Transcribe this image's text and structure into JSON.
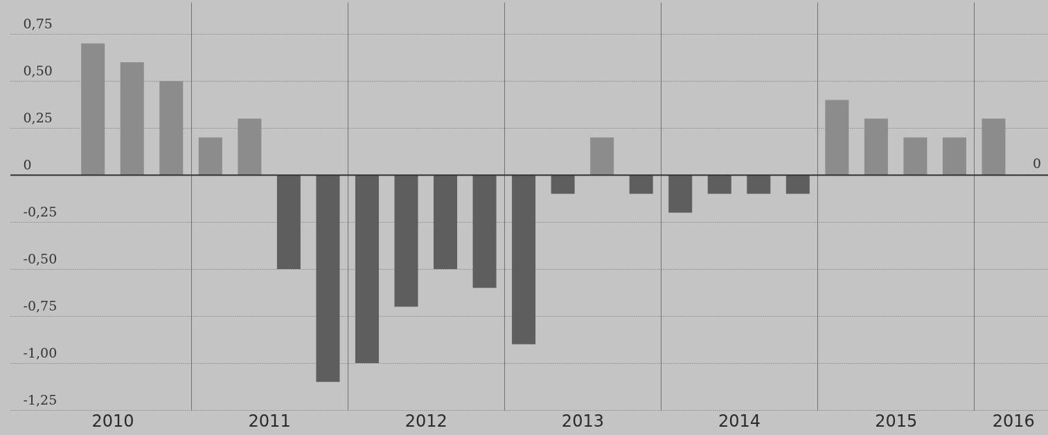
{
  "chart_data": {
    "type": "bar",
    "x": [
      2010.375,
      2010.625,
      2010.875,
      2011.125,
      2011.375,
      2011.625,
      2011.875,
      2012.125,
      2012.375,
      2012.625,
      2012.875,
      2013.125,
      2013.375,
      2013.625,
      2013.875,
      2014.125,
      2014.375,
      2014.625,
      2014.875,
      2015.125,
      2015.375,
      2015.625,
      2015.875,
      2016.125
    ],
    "values": [
      0.7,
      0.6,
      0.5,
      0.2,
      0.3,
      -0.5,
      -1.1,
      -1.0,
      -0.7,
      -0.5,
      -0.6,
      -0.9,
      -0.1,
      0.2,
      -0.1,
      -0.2,
      -0.1,
      -0.1,
      -0.1,
      0.4,
      0.3,
      0.2,
      0.2,
      0.3
    ],
    "colors": [
      "#8c8c8c",
      "#8c8c8c",
      "#8c8c8c",
      "#8c8c8c",
      "#8c8c8c",
      "#5e5e5e",
      "#5e5e5e",
      "#5e5e5e",
      "#5e5e5e",
      "#5e5e5e",
      "#5e5e5e",
      "#5e5e5e",
      "#5e5e5e",
      "#8c8c8c",
      "#5e5e5e",
      "#5e5e5e",
      "#5e5e5e",
      "#5e5e5e",
      "#5e5e5e",
      "#8c8c8c",
      "#8c8c8c",
      "#8c8c8c",
      "#8c8c8c",
      "#8c8c8c"
    ],
    "xlim": [
      2009.87,
      2016.45
    ],
    "xticks": [
      {
        "value": 2010.5,
        "label": "2010"
      },
      {
        "value": 2011,
        "label": null
      },
      {
        "value": 2011.5,
        "label": "2011"
      },
      {
        "value": 2012,
        "label": null
      },
      {
        "value": 2012.5,
        "label": "2012"
      },
      {
        "value": 2013,
        "label": null
      },
      {
        "value": 2013.5,
        "label": "2013"
      },
      {
        "value": 2014,
        "label": null
      },
      {
        "value": 2014.5,
        "label": "2014"
      },
      {
        "value": 2015,
        "label": null
      },
      {
        "value": 2015.5,
        "label": "2015"
      },
      {
        "value": 2016,
        "label": null
      },
      {
        "value": 2016.25,
        "label": "2016"
      }
    ],
    "ylim": [
      -1.25,
      0.92
    ],
    "yticks": [
      {
        "value": 0.75,
        "label": "0,75"
      },
      {
        "value": 0.5,
        "label": "0,50"
      },
      {
        "value": 0.25,
        "label": "0,25"
      },
      0,
      {
        "value": -0.25,
        "label": "-0,25"
      },
      {
        "value": -0.5,
        "label": "-0,50"
      },
      {
        "value": -0.75,
        "label": "-0,75"
      },
      {
        "value": -1,
        "label": "-1,00"
      },
      {
        "value": -1.25,
        "label": "-1,25"
      }
    ],
    "grid": true,
    "ref_lines": [
      {
        "axis": "y",
        "value": 0,
        "label": "0",
        "color": "#333333"
      }
    ]
  }
}
